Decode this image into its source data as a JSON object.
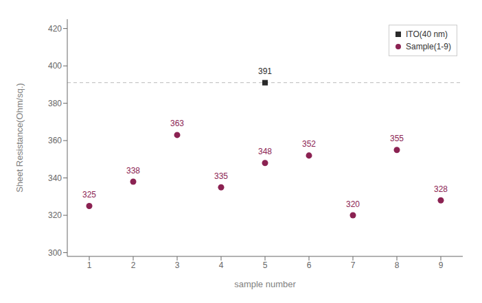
{
  "chart_data": {
    "type": "scatter",
    "xlabel": "sample number",
    "ylabel": "Sheet Resistance(Ohm/sq.)",
    "xlim": [
      0.5,
      9.5
    ],
    "xticks": [
      1,
      2,
      3,
      4,
      5,
      6,
      7,
      8,
      9
    ],
    "ylim": [
      298,
      425
    ],
    "yticks": [
      300,
      320,
      340,
      360,
      380,
      400,
      420
    ],
    "grid": false,
    "legend": "upper right",
    "data_labels": true,
    "hline": 391,
    "series": [
      {
        "name": "ITO(40 nm)",
        "color": "#2a2a2a",
        "marker": "square",
        "x": [
          5
        ],
        "values": [
          391
        ]
      },
      {
        "name": "Sample(1-9)",
        "color": "#8B2252",
        "marker": "circle",
        "x": [
          1,
          2,
          3,
          4,
          5,
          6,
          7,
          8,
          9
        ],
        "values": [
          325,
          338,
          363,
          335,
          348,
          352,
          320,
          355,
          328
        ]
      }
    ]
  }
}
